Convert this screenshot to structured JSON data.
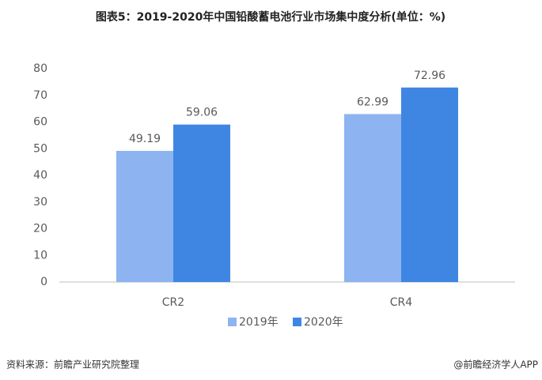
{
  "chart_data": {
    "type": "bar",
    "title": "图表5：2019-2020年中国铅酸蓄电池行业市场集中度分析(单位：%)",
    "categories": [
      "CR2",
      "CR4"
    ],
    "series": [
      {
        "name": "2019年",
        "color": "#8db4f0",
        "values": [
          49.19,
          62.99
        ]
      },
      {
        "name": "2020年",
        "color": "#3f86e3",
        "values": [
          59.06,
          72.96
        ]
      }
    ],
    "ylim": [
      0,
      80
    ],
    "yticks": [
      0,
      10,
      20,
      30,
      40,
      50,
      60,
      70,
      80
    ],
    "grid": false,
    "legend": "bottom",
    "source": "资料来源：前瞻产业研究院整理",
    "credit": "@前瞻经济学人APP"
  }
}
